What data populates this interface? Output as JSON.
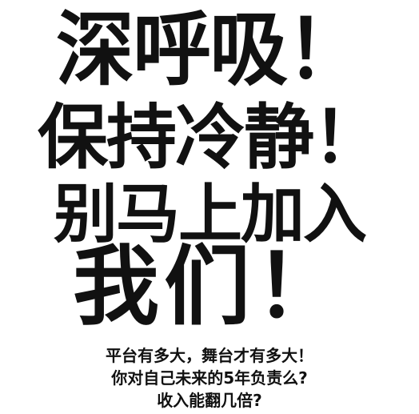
{
  "headline": {
    "line1": "深呼吸！",
    "line2": "保持冷静！",
    "line3": "别马上加入",
    "line4": "我们！"
  },
  "subtext": {
    "line1": "平台有多大，舞台才有多大！",
    "line2": "你对自己未来的5年负责么?",
    "line3": "收入能翻几倍?"
  },
  "colors": {
    "background": "#ffffff",
    "text": "#111111"
  }
}
